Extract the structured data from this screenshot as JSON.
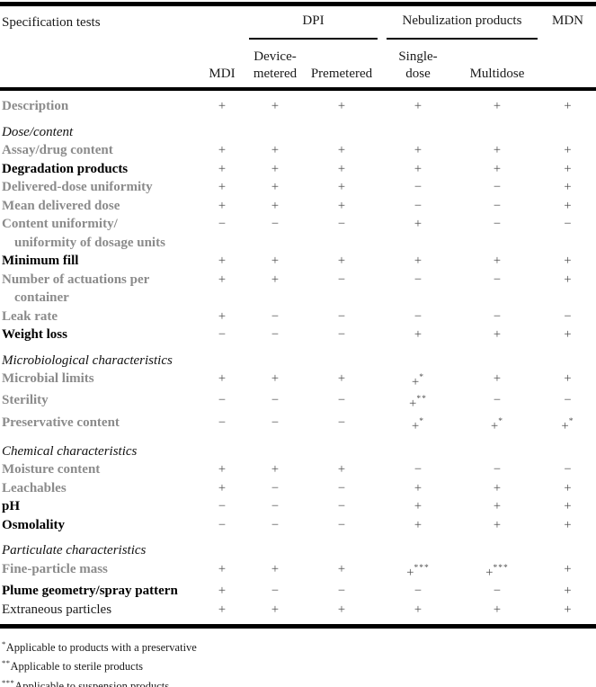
{
  "colors": {
    "rule": "#000000",
    "gray_label": "#8b8b8b",
    "bold_label": "#000000",
    "plain_label": "#1a1a1a",
    "symbol": "#4f4f4f",
    "background": "#ffffff"
  },
  "table": {
    "header": {
      "spec_label": "Specification tests",
      "groups": {
        "dpi": "DPI",
        "nebulization": "Nebulization products"
      },
      "subheaders": {
        "mdi": "MDI",
        "device_metered": [
          "Device-",
          "metered"
        ],
        "premetered": "Premetered",
        "single_dose": [
          "Single-",
          "dose"
        ],
        "multidose": "Multidose",
        "mdn": "MDN"
      },
      "columns": [
        "MDI",
        "Device-metered",
        "Premetered",
        "Single-dose",
        "Multidose",
        "MDN"
      ]
    },
    "rows": [
      {
        "type": "test",
        "style": "gray",
        "label": "Description",
        "values": [
          "+",
          "+",
          "+",
          "+",
          "+",
          "+"
        ]
      },
      {
        "type": "section",
        "label": "Dose/content"
      },
      {
        "type": "test",
        "style": "gray",
        "label": "Assay/drug content",
        "values": [
          "+",
          "+",
          "+",
          "+",
          "+",
          "+"
        ]
      },
      {
        "type": "test",
        "style": "bold",
        "label": "Degradation products",
        "values": [
          "+",
          "+",
          "+",
          "+",
          "+",
          "+"
        ]
      },
      {
        "type": "test",
        "style": "gray",
        "label": "Delivered-dose uniformity",
        "values": [
          "+",
          "+",
          "+",
          "−",
          "−",
          "+"
        ]
      },
      {
        "type": "test",
        "style": "gray",
        "label": "Mean delivered dose",
        "values": [
          "+",
          "+",
          "+",
          "−",
          "−",
          "+"
        ]
      },
      {
        "type": "test",
        "style": "gray",
        "label": "Content uniformity/",
        "label2": "uniformity of dosage units",
        "values": [
          "−",
          "−",
          "−",
          "+",
          "−",
          "−"
        ]
      },
      {
        "type": "test",
        "style": "bold",
        "label": "Minimum fill",
        "values": [
          "+",
          "+",
          "+",
          "+",
          "+",
          "+"
        ]
      },
      {
        "type": "test",
        "style": "gray",
        "label": "Number of actuations per",
        "label2": "container",
        "values": [
          "+",
          "+",
          "−",
          "−",
          "−",
          "+"
        ]
      },
      {
        "type": "test",
        "style": "gray",
        "label": "Leak rate",
        "values": [
          "+",
          "−",
          "−",
          "−",
          "−",
          "−"
        ]
      },
      {
        "type": "test",
        "style": "bold",
        "label": "Weight loss",
        "values": [
          "−",
          "−",
          "−",
          "+",
          "+",
          "+"
        ]
      },
      {
        "type": "section",
        "label": "Microbiological characteristics"
      },
      {
        "type": "test",
        "style": "gray",
        "label": "Microbial limits",
        "values": [
          "+",
          "+",
          "+",
          "+",
          "+",
          "+"
        ],
        "sups": [
          "",
          "",
          "",
          "*",
          "",
          ""
        ]
      },
      {
        "type": "test",
        "style": "gray",
        "label": "Sterility",
        "values": [
          "−",
          "−",
          "−",
          "+",
          "−",
          "−"
        ],
        "sups": [
          "",
          "",
          "",
          "**",
          "",
          ""
        ]
      },
      {
        "type": "test",
        "style": "gray",
        "label": "Preservative content",
        "values": [
          "−",
          "−",
          "−",
          "+",
          "+",
          "+"
        ],
        "sups": [
          "",
          "",
          "",
          "*",
          "*",
          "*"
        ]
      },
      {
        "type": "section",
        "label": "Chemical characteristics"
      },
      {
        "type": "test",
        "style": "gray",
        "label": "Moisture content",
        "values": [
          "+",
          "+",
          "+",
          "−",
          "−",
          "−"
        ]
      },
      {
        "type": "test",
        "style": "gray",
        "label": "Leachables",
        "values": [
          "+",
          "−",
          "−",
          "+",
          "+",
          "+"
        ]
      },
      {
        "type": "test",
        "style": "bold",
        "label": "pH",
        "values": [
          "−",
          "−",
          "−",
          "+",
          "+",
          "+"
        ]
      },
      {
        "type": "test",
        "style": "bold",
        "label": "Osmolality",
        "values": [
          "−",
          "−",
          "−",
          "+",
          "+",
          "+"
        ]
      },
      {
        "type": "section",
        "label": "Particulate characteristics"
      },
      {
        "type": "test",
        "style": "gray",
        "label": "Fine-particle mass",
        "values": [
          "+",
          "+",
          "+",
          "+",
          "+",
          "+"
        ],
        "sups": [
          "",
          "",
          "",
          "***",
          "***",
          ""
        ]
      },
      {
        "type": "test",
        "style": "bold",
        "label": "Plume geometry/spray pattern",
        "values": [
          "+",
          "−",
          "−",
          "−",
          "−",
          "+"
        ]
      },
      {
        "type": "test",
        "style": "plain",
        "label": "Extraneous particles",
        "values": [
          "+",
          "+",
          "+",
          "+",
          "+",
          "+"
        ]
      }
    ]
  },
  "footnotes": [
    {
      "marker": "*",
      "text": "Applicable to products with a preservative"
    },
    {
      "marker": "**",
      "text": "Applicable to sterile products"
    },
    {
      "marker": "***",
      "text": "Applicable to suspension products"
    }
  ]
}
